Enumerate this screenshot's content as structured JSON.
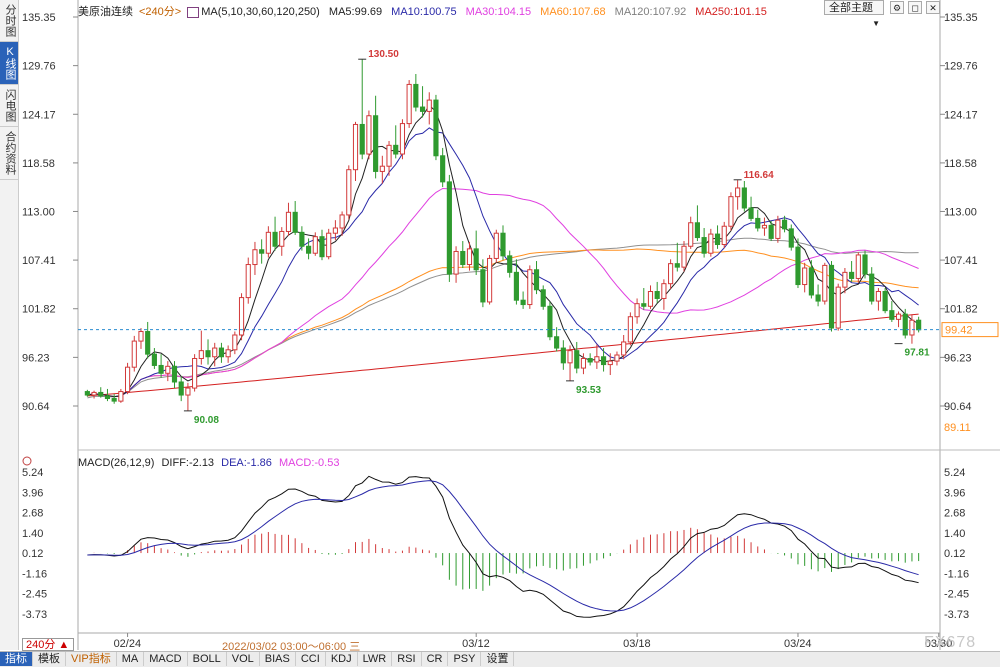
{
  "side_tabs": [
    "分时图",
    "K线图",
    "闪电图",
    "合约资料"
  ],
  "legend": {
    "name": "美原油连续",
    "period": "<240分>",
    "ma_params": "MA(5,10,30,60,120,250)",
    "ma5": "MA5:99.69",
    "ma10": "MA10:100.75",
    "ma30": "MA30:104.15",
    "ma60": "MA60:107.68",
    "ma120": "MA120:107.92",
    "ma250": "MA250:101.15"
  },
  "macd_legend": {
    "params": "MACD(26,12,9)",
    "diff": "DIFF:-2.13",
    "dea": "DEA:-1.86",
    "macd": "MACD:-0.53"
  },
  "theme_button": "全部主题",
  "bottom_tabs": [
    "指标",
    "模板",
    "VIP指标",
    "MA",
    "MACD",
    "BOLL",
    "VOL",
    "BIAS",
    "CCI",
    "KDJ",
    "LWR",
    "RSI",
    "CR",
    "PSY",
    "设置"
  ],
  "period_box": "240分 ▲",
  "date_tip": "2022/03/02 03:00～06:00 三",
  "watermark": "FX678",
  "colors": {
    "up": "#d23a3a",
    "down": "#2f9a2f",
    "ma5": "#222222",
    "ma10": "#2a2aa8",
    "ma30": "#e040e0",
    "ma60": "#ff9020",
    "ma120": "#909090",
    "ma250": "#d42020",
    "diff": "#111111",
    "dea": "#2a2aa8"
  },
  "chart_data": {
    "type": "candlestick",
    "y_ticks": [
      135.35,
      129.76,
      124.17,
      118.58,
      113.0,
      107.41,
      101.82,
      96.23,
      90.64
    ],
    "x_labels": [
      "02/24",
      "03/12",
      "03/18",
      "03/24",
      "03/30"
    ],
    "price_labels": {
      "current": "99.42",
      "low_edge": "89.11",
      "annotations": [
        "130.50",
        "116.64",
        "90.08",
        "93.53",
        "97.81"
      ]
    },
    "candles": [
      [
        92.3,
        92.5,
        91.7,
        91.9
      ],
      [
        91.9,
        92.4,
        91.5,
        92.2
      ],
      [
        92.2,
        92.8,
        91.6,
        91.8
      ],
      [
        91.8,
        92.6,
        91.2,
        91.5
      ],
      [
        91.5,
        92.0,
        90.9,
        91.2
      ],
      [
        91.2,
        92.6,
        91.0,
        92.3
      ],
      [
        92.3,
        95.6,
        92.0,
        95.1
      ],
      [
        95.1,
        98.7,
        94.6,
        98.1
      ],
      [
        98.1,
        99.6,
        97.2,
        99.2
      ],
      [
        99.2,
        100.3,
        96.1,
        96.6
      ],
      [
        96.6,
        97.3,
        94.9,
        95.3
      ],
      [
        95.3,
        96.6,
        93.9,
        94.4
      ],
      [
        94.4,
        95.8,
        93.5,
        95.2
      ],
      [
        95.2,
        95.8,
        92.7,
        93.4
      ],
      [
        93.4,
        94.1,
        91.2,
        91.9
      ],
      [
        91.9,
        93.3,
        90.1,
        92.7
      ],
      [
        92.7,
        96.6,
        92.3,
        96.1
      ],
      [
        96.1,
        99.3,
        95.4,
        97.0
      ],
      [
        97.0,
        98.3,
        95.4,
        96.3
      ],
      [
        96.3,
        97.9,
        95.2,
        97.3
      ],
      [
        97.3,
        97.9,
        95.6,
        96.3
      ],
      [
        96.3,
        97.6,
        95.6,
        97.1
      ],
      [
        97.1,
        99.2,
        96.6,
        98.8
      ],
      [
        98.8,
        103.6,
        98.2,
        103.1
      ],
      [
        103.1,
        107.7,
        102.4,
        106.9
      ],
      [
        106.9,
        109.5,
        105.7,
        108.6
      ],
      [
        108.6,
        109.8,
        107.0,
        108.2
      ],
      [
        108.2,
        111.3,
        107.7,
        110.6
      ],
      [
        110.6,
        112.4,
        108.5,
        109.0
      ],
      [
        109.0,
        111.2,
        107.9,
        110.7
      ],
      [
        110.7,
        114.0,
        110.2,
        112.9
      ],
      [
        112.9,
        114.2,
        110.3,
        110.6
      ],
      [
        110.6,
        111.3,
        108.5,
        109.0
      ],
      [
        109.0,
        109.9,
        107.5,
        108.2
      ],
      [
        108.2,
        110.6,
        107.9,
        110.1
      ],
      [
        110.1,
        110.9,
        107.4,
        107.8
      ],
      [
        107.8,
        111.0,
        107.5,
        110.5
      ],
      [
        110.5,
        112.0,
        109.7,
        111.1
      ],
      [
        111.1,
        113.0,
        110.2,
        112.6
      ],
      [
        112.6,
        118.3,
        112.1,
        117.8
      ],
      [
        117.8,
        123.3,
        116.5,
        123.0
      ],
      [
        123.0,
        130.5,
        119.0,
        119.6
      ],
      [
        119.6,
        124.6,
        119.0,
        124.0
      ],
      [
        124.0,
        126.3,
        116.8,
        117.6
      ],
      [
        117.6,
        119.4,
        116.2,
        118.2
      ],
      [
        118.2,
        121.1,
        117.1,
        120.6
      ],
      [
        120.6,
        122.9,
        119.1,
        119.6
      ],
      [
        119.6,
        123.6,
        119.0,
        123.1
      ],
      [
        123.1,
        128.1,
        122.6,
        127.6
      ],
      [
        127.6,
        128.8,
        124.5,
        125.0
      ],
      [
        125.0,
        127.4,
        123.8,
        124.5
      ],
      [
        124.5,
        126.7,
        123.0,
        125.8
      ],
      [
        125.8,
        126.4,
        118.9,
        119.4
      ],
      [
        119.4,
        120.3,
        115.8,
        116.4
      ],
      [
        116.4,
        117.2,
        104.9,
        105.8
      ],
      [
        105.8,
        109.0,
        104.8,
        108.4
      ],
      [
        108.4,
        109.6,
        106.5,
        106.9
      ],
      [
        106.9,
        109.5,
        106.2,
        108.7
      ],
      [
        108.7,
        110.8,
        105.7,
        106.3
      ],
      [
        106.3,
        107.5,
        102.0,
        102.6
      ],
      [
        102.6,
        108.0,
        102.3,
        107.6
      ],
      [
        107.6,
        110.9,
        107.1,
        110.5
      ],
      [
        110.5,
        111.4,
        107.4,
        107.9
      ],
      [
        107.9,
        108.5,
        105.4,
        106.0
      ],
      [
        106.0,
        107.5,
        102.3,
        102.8
      ],
      [
        102.8,
        103.8,
        101.8,
        102.3
      ],
      [
        102.3,
        106.8,
        101.8,
        106.3
      ],
      [
        106.3,
        107.3,
        103.5,
        104.0
      ],
      [
        104.0,
        104.5,
        101.7,
        102.1
      ],
      [
        102.1,
        102.6,
        98.2,
        98.6
      ],
      [
        98.6,
        99.7,
        96.9,
        97.3
      ],
      [
        97.3,
        98.2,
        94.8,
        95.6
      ],
      [
        95.6,
        97.6,
        93.5,
        97.0
      ],
      [
        97.0,
        98.0,
        94.4,
        95.0
      ],
      [
        95.0,
        96.7,
        94.3,
        96.1
      ],
      [
        96.1,
        96.7,
        95.3,
        95.7
      ],
      [
        95.7,
        97.7,
        94.9,
        96.3
      ],
      [
        96.3,
        97.3,
        94.6,
        95.4
      ],
      [
        95.4,
        96.7,
        94.2,
        95.8
      ],
      [
        95.8,
        96.9,
        95.3,
        96.5
      ],
      [
        96.5,
        98.8,
        96.0,
        98.0
      ],
      [
        98.0,
        101.4,
        97.6,
        100.9
      ],
      [
        100.9,
        103.0,
        100.1,
        102.4
      ],
      [
        102.4,
        104.2,
        101.7,
        102.1
      ],
      [
        102.1,
        104.5,
        101.8,
        103.8
      ],
      [
        103.8,
        104.9,
        102.5,
        103.0
      ],
      [
        103.0,
        105.2,
        101.7,
        104.7
      ],
      [
        104.7,
        107.5,
        104.1,
        107.0
      ],
      [
        107.0,
        109.4,
        106.1,
        106.6
      ],
      [
        106.6,
        109.6,
        106.1,
        109.0
      ],
      [
        109.0,
        112.4,
        108.7,
        111.7
      ],
      [
        111.7,
        113.7,
        109.6,
        110.0
      ],
      [
        110.0,
        111.1,
        107.7,
        108.2
      ],
      [
        108.2,
        111.0,
        107.8,
        110.4
      ],
      [
        110.4,
        111.4,
        108.7,
        109.2
      ],
      [
        109.2,
        111.8,
        108.8,
        111.3
      ],
      [
        111.3,
        115.2,
        110.8,
        114.7
      ],
      [
        114.7,
        116.6,
        113.2,
        115.7
      ],
      [
        115.7,
        116.5,
        113.0,
        113.4
      ],
      [
        113.4,
        114.7,
        111.9,
        112.2
      ],
      [
        112.2,
        113.2,
        110.7,
        111.1
      ],
      [
        111.1,
        112.3,
        110.2,
        111.4
      ],
      [
        111.4,
        111.9,
        109.6,
        109.9
      ],
      [
        109.9,
        112.5,
        109.4,
        112.0
      ],
      [
        112.0,
        112.5,
        110.6,
        111.0
      ],
      [
        111.0,
        111.5,
        108.5,
        108.9
      ],
      [
        108.9,
        109.9,
        104.2,
        104.6
      ],
      [
        104.6,
        107.1,
        103.7,
        106.5
      ],
      [
        106.5,
        107.4,
        103.0,
        103.4
      ],
      [
        103.4,
        104.6,
        102.1,
        102.7
      ],
      [
        102.7,
        107.1,
        102.3,
        106.8
      ],
      [
        106.8,
        107.3,
        99.2,
        99.6
      ],
      [
        99.6,
        104.7,
        99.3,
        104.3
      ],
      [
        104.3,
        106.5,
        103.6,
        106.0
      ],
      [
        106.0,
        107.3,
        104.9,
        105.3
      ],
      [
        105.3,
        108.3,
        104.8,
        108.0
      ],
      [
        108.0,
        108.5,
        105.3,
        105.8
      ],
      [
        105.8,
        106.6,
        102.3,
        102.7
      ],
      [
        102.7,
        104.2,
        101.6,
        103.8
      ],
      [
        103.8,
        104.2,
        101.3,
        101.6
      ],
      [
        101.6,
        102.7,
        100.3,
        100.6
      ],
      [
        100.6,
        101.5,
        99.7,
        101.2
      ],
      [
        101.2,
        101.8,
        98.4,
        98.8
      ],
      [
        98.8,
        101.1,
        97.8,
        100.5
      ],
      [
        100.5,
        100.9,
        99.1,
        99.4
      ]
    ],
    "macd": {
      "diff_last": -2.13,
      "dea_last": -1.86,
      "macd_last": -0.53,
      "y_ticks": [
        5.24,
        3.96,
        2.68,
        1.4,
        0.12,
        -1.16,
        -2.45,
        -3.73
      ]
    }
  }
}
